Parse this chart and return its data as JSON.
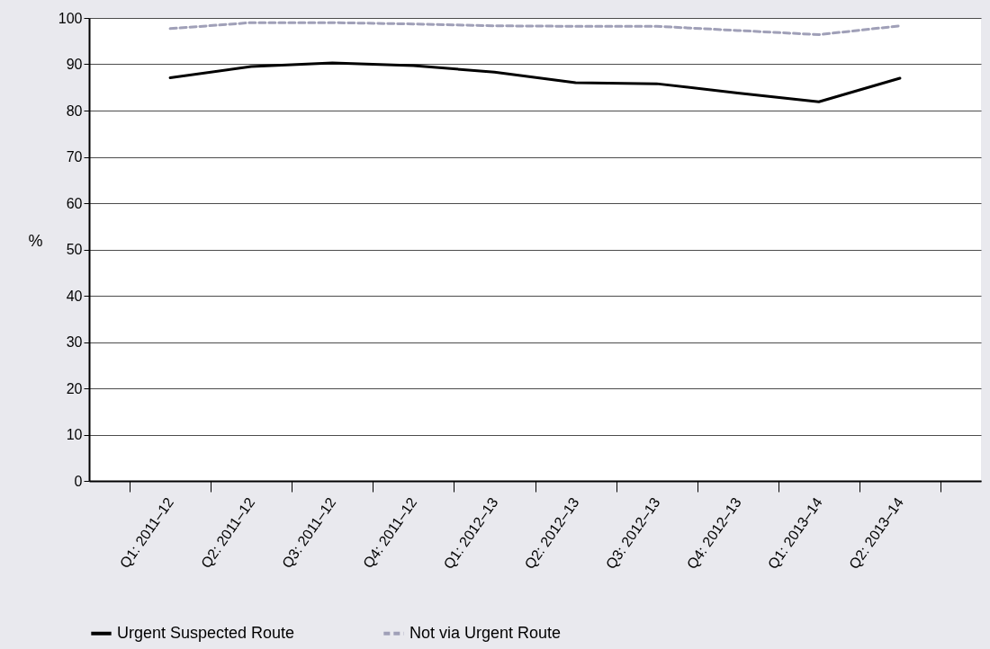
{
  "chart_data": {
    "type": "line",
    "ylabel": "%",
    "categories": [
      "Q1: 2011–12",
      "Q2: 2011–12",
      "Q3: 2011–12",
      "Q4: 2011–12",
      "Q1: 2012–13",
      "Q2: 2012–13",
      "Q3: 2012–13",
      "Q4: 2012–13",
      "Q1: 2013–14",
      "Q2: 2013–14"
    ],
    "series": [
      {
        "name": "Urgent Suspected Route",
        "color": "#000000",
        "line_style": "solid",
        "values": [
          87.1,
          89.5,
          90.3,
          89.7,
          88.3,
          86.0,
          85.8,
          83.8,
          81.9,
          87.0
        ]
      },
      {
        "name": "Not via Urgent Route",
        "color": "#a0a0b8",
        "line_style": "dashed",
        "values": [
          97.7,
          99.0,
          99.0,
          98.7,
          98.3,
          98.2,
          98.2,
          97.3,
          96.4,
          98.3
        ]
      }
    ],
    "ylim": [
      0,
      100
    ],
    "yticks": [
      0,
      10,
      20,
      30,
      40,
      50,
      60,
      70,
      80,
      90,
      100
    ],
    "grid": "y",
    "legend": "bottom",
    "marker": "none"
  }
}
